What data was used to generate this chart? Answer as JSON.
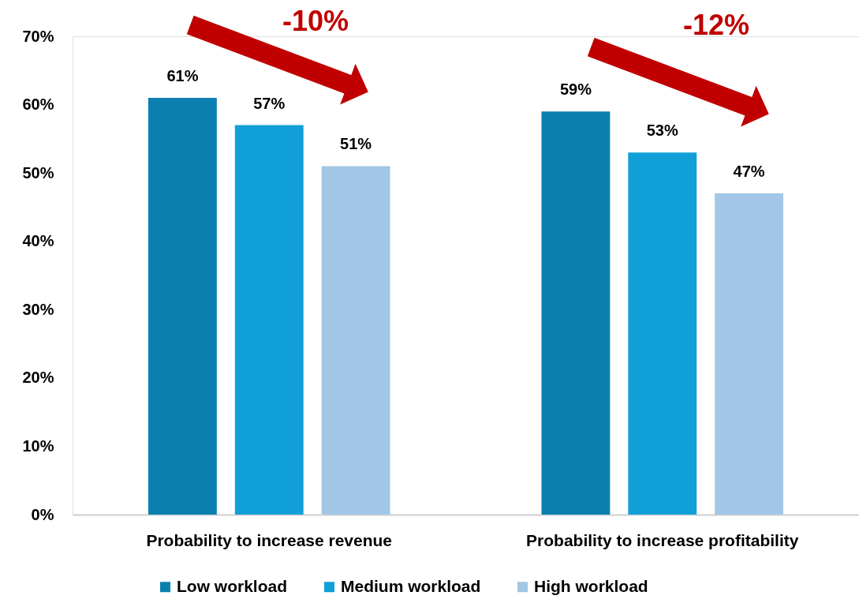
{
  "chart_data": {
    "type": "bar",
    "categories": [
      "Probability to increase revenue",
      "Probability to increase profitability"
    ],
    "series": [
      {
        "name": "Low workload",
        "color": "#0b80b0",
        "values": [
          61,
          59
        ],
        "value_labels": [
          "61%",
          "59%"
        ]
      },
      {
        "name": "Medium workload",
        "color": "#119fd8",
        "values": [
          57,
          53
        ],
        "value_labels": [
          "57%",
          "53%"
        ]
      },
      {
        "name": "High workload",
        "color": "#a2c7e6",
        "values": [
          51,
          47
        ],
        "value_labels": [
          "51%",
          "47%"
        ]
      }
    ],
    "ylim": [
      0,
      70
    ],
    "yticks": [
      {
        "value": 0,
        "label": "0%"
      },
      {
        "value": 10,
        "label": "10%"
      },
      {
        "value": 20,
        "label": "20%"
      },
      {
        "value": 30,
        "label": "30%"
      },
      {
        "value": 40,
        "label": "40%"
      },
      {
        "value": 50,
        "label": "50%"
      },
      {
        "value": 60,
        "label": "60%"
      },
      {
        "value": 70,
        "label": "70%"
      }
    ],
    "grid": false,
    "legend": "bottom",
    "annotations": [
      "-10%",
      "-12%"
    ]
  }
}
